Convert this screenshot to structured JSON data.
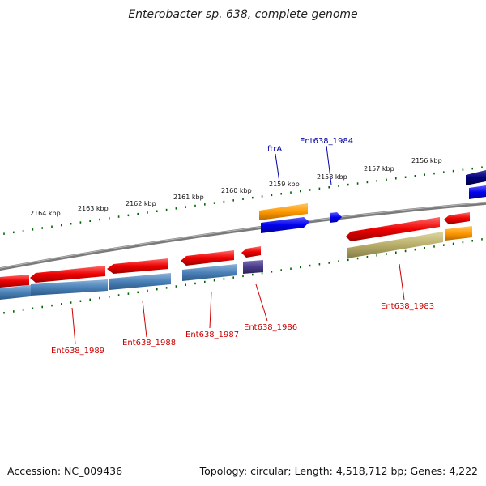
{
  "title": "Enterobacter sp. 638, complete genome",
  "footer": {
    "accession": "Accession: NC_009436",
    "summary": "Topology: circular; Length: 4,518,712 bp; Genes: 4,222"
  },
  "scale": {
    "labels": [
      "2164 kbp",
      "2163 kbp",
      "2162 kbp",
      "2161 kbp",
      "2160 kbp",
      "2159 kbp",
      "2158 kbp",
      "2157 kbp",
      "2156 kbp"
    ]
  },
  "gene_labels": {
    "ftrA": "ftrA",
    "ent1984": "Ent638_1984",
    "ent1983": "Ent638_1983",
    "ent1986": "Ent638_1986",
    "ent1987": "Ent638_1987",
    "ent1988": "Ent638_1988",
    "ent1989": "Ent638_1989"
  },
  "colors": {
    "cds_red": "#ee0000",
    "cds_blue": "#0000ee",
    "steel_blue": "#4a82b8",
    "orange": "#ff9900",
    "olive": "#b8ae6a",
    "navy": "#000077",
    "purple": "#4a3d8a",
    "tick_green": "#006400",
    "label_red": "#cc0000",
    "label_blue": "#0000aa"
  }
}
